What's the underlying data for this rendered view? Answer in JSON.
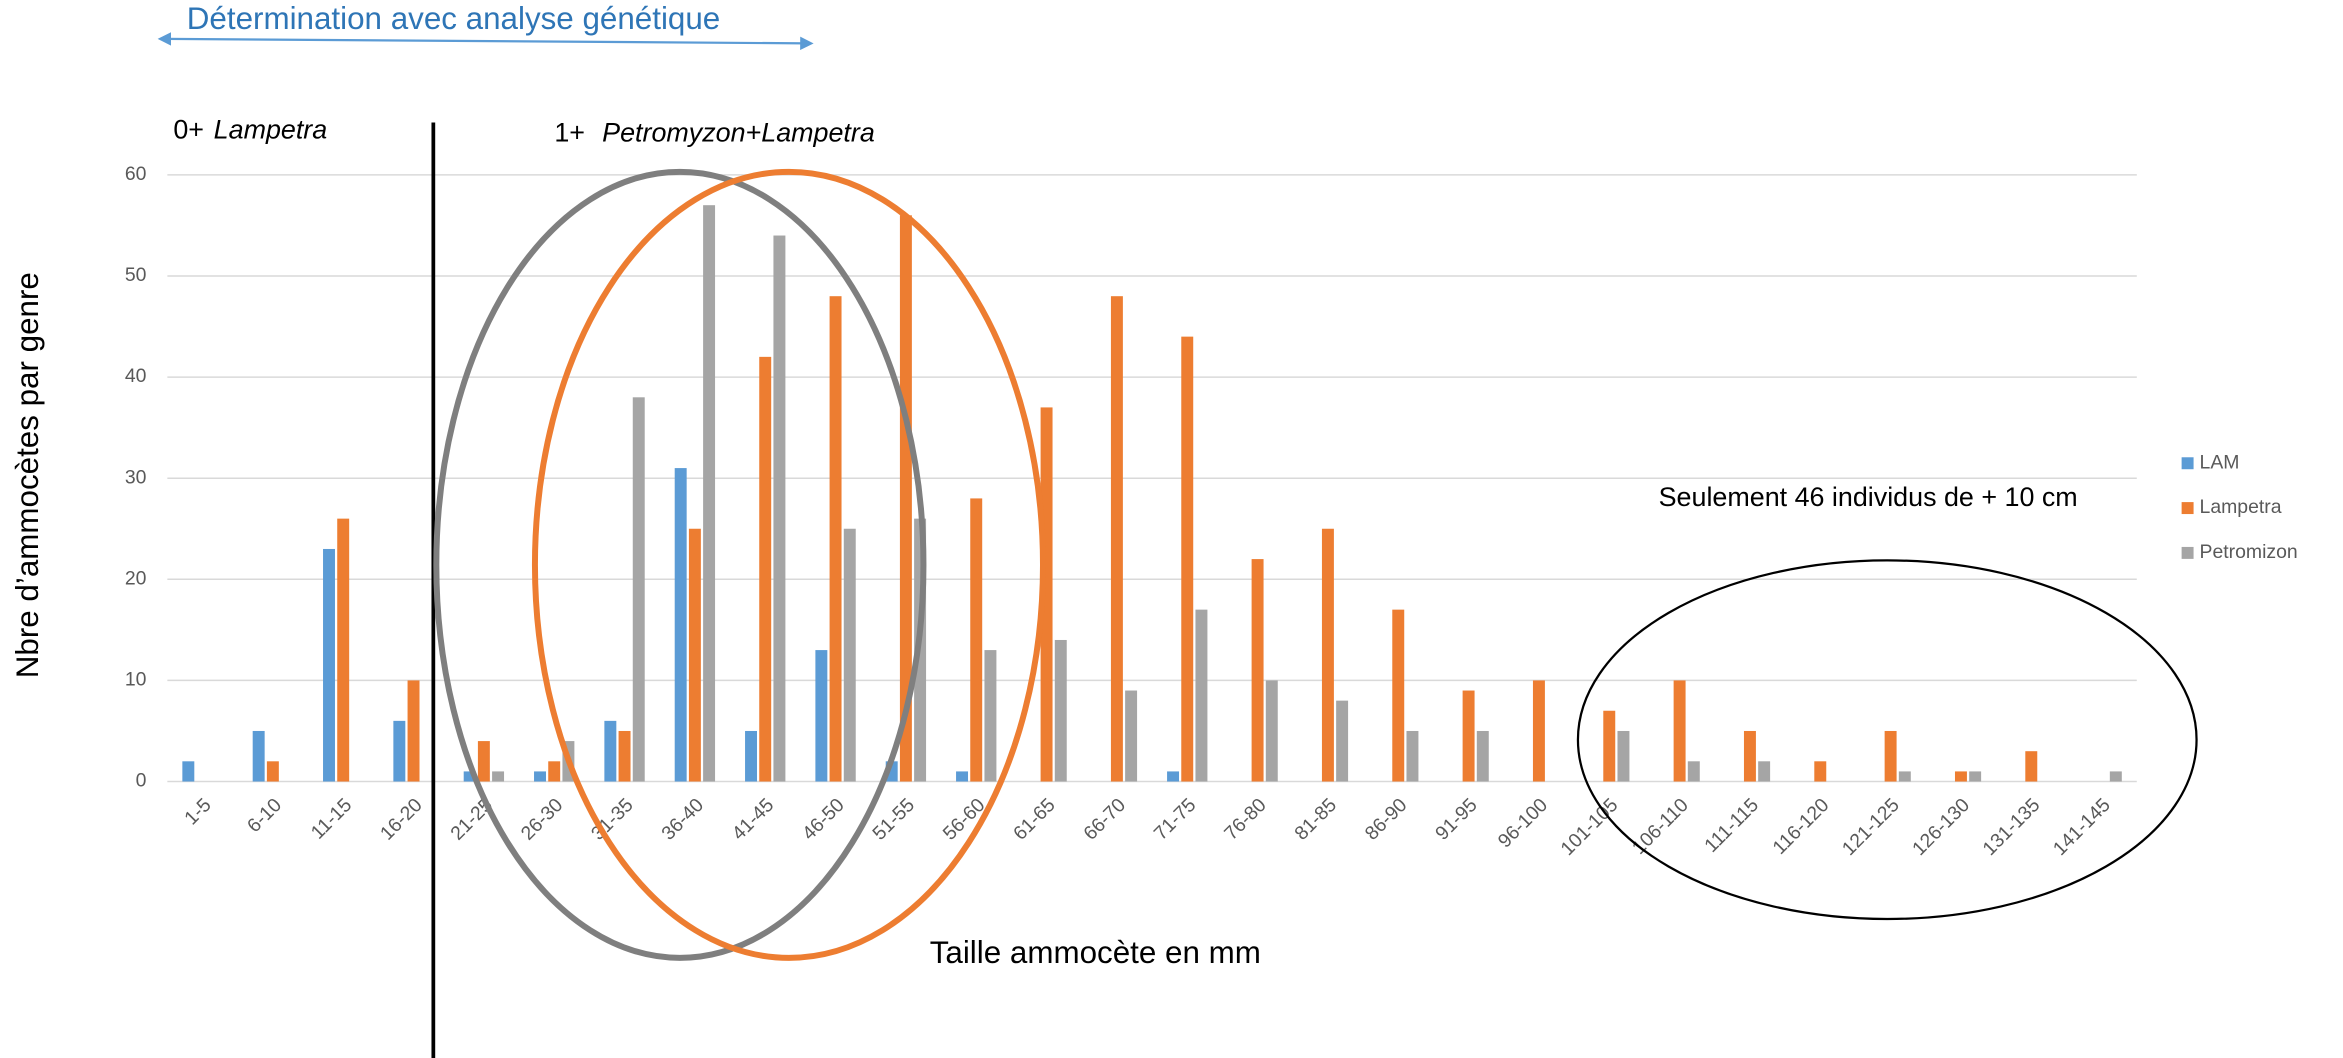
{
  "chart_data": {
    "type": "bar",
    "title": "Détermination avec analyse génétique",
    "x_label": "Taille ammocète en mm",
    "y_label": "Nbre d’ammocètes par genre",
    "annotations": [
      "0+",
      "Lampetra",
      "1+",
      "Petromyzon+Lampetra",
      "Seulement 46 individus de + 10 cm"
    ],
    "categories": [
      "1-5",
      "6-10",
      "11-15",
      "16-20",
      "21-25",
      "26-30",
      "31-35",
      "36-40",
      "41-45",
      "46-50",
      "51-55",
      "56-60",
      "61-65",
      "66-70",
      "71-75",
      "76-80",
      "81-85",
      "86-90",
      "91-95",
      "96-100",
      "101-105",
      "106-110",
      "111-115",
      "116-120",
      "121-125",
      "126-130",
      "131-135",
      "141-145"
    ],
    "series": [
      {
        "name": "LAM",
        "color": "#5b9bd5",
        "values": [
          2,
          5,
          23,
          6,
          1,
          1,
          6,
          31,
          5,
          13,
          2,
          1,
          0,
          0,
          1,
          0,
          0,
          0,
          0,
          0,
          0,
          0,
          0,
          0,
          0,
          0,
          0,
          0
        ]
      },
      {
        "name": "Lampetra",
        "color": "#ed7d31",
        "values": [
          0,
          2,
          26,
          10,
          4,
          2,
          5,
          25,
          42,
          48,
          56,
          28,
          37,
          48,
          44,
          22,
          25,
          17,
          9,
          10,
          7,
          10,
          5,
          2,
          5,
          1,
          3,
          0
        ]
      },
      {
        "name": "Petromizon",
        "color": "#a5a5a5",
        "values": [
          0,
          0,
          0,
          0,
          1,
          4,
          38,
          57,
          54,
          25,
          26,
          13,
          14,
          9,
          17,
          10,
          8,
          5,
          5,
          0,
          5,
          2,
          2,
          0,
          1,
          1,
          0,
          1
        ]
      }
    ],
    "ylim": [
      0,
      60
    ],
    "yticks": [
      0,
      10,
      20,
      30,
      40,
      50,
      60
    ],
    "grid": true,
    "legend": "right"
  }
}
